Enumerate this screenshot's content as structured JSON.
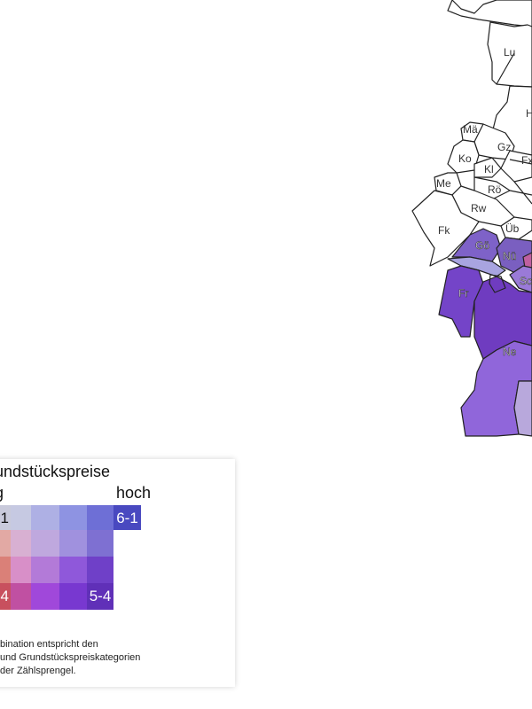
{
  "map": {
    "district_labels": [
      "Lu",
      "H",
      "Mä",
      "Gz",
      "Ko",
      "Kl",
      "Fx",
      "Me",
      "Rö",
      "Rw",
      "Fk",
      "Üb",
      "Gö",
      "Nü",
      "Sc",
      "Fr",
      "Ne"
    ]
  },
  "legend": {
    "title": "undstückspreise",
    "low_label": "g",
    "high_label": "hoch",
    "grid": [
      [
        {
          "label": "1",
          "color": "#c9cadb"
        },
        {
          "color": "#c6c9e2"
        },
        {
          "color": "#aeb0e4"
        },
        {
          "color": "#8e93e2"
        },
        {
          "color": "#6e6fd6"
        },
        {
          "label": "6-1",
          "color": "#4949c0"
        }
      ],
      [
        {
          "color": "#e2a9a4"
        },
        {
          "color": "#d8b0d2"
        },
        {
          "color": "#bfa8de"
        },
        {
          "color": "#a091de"
        },
        {
          "color": "#7e70d2"
        }
      ],
      [
        {
          "color": "#da8078"
        },
        {
          "color": "#d88fc8"
        },
        {
          "color": "#b37ad8"
        },
        {
          "color": "#8f58da"
        },
        {
          "color": "#6f40c8"
        }
      ],
      [
        {
          "label": "4",
          "color": "#c8505e"
        },
        {
          "color": "#c050a2"
        },
        {
          "color": "#a048da"
        },
        {
          "color": "#7838d0"
        },
        {
          "label": "5-4",
          "color": "#6030b8"
        }
      ]
    ],
    "note_lines": [
      "bination entspricht den",
      "und Grundstückspreiskategorien",
      " der Zählsprengel."
    ]
  }
}
